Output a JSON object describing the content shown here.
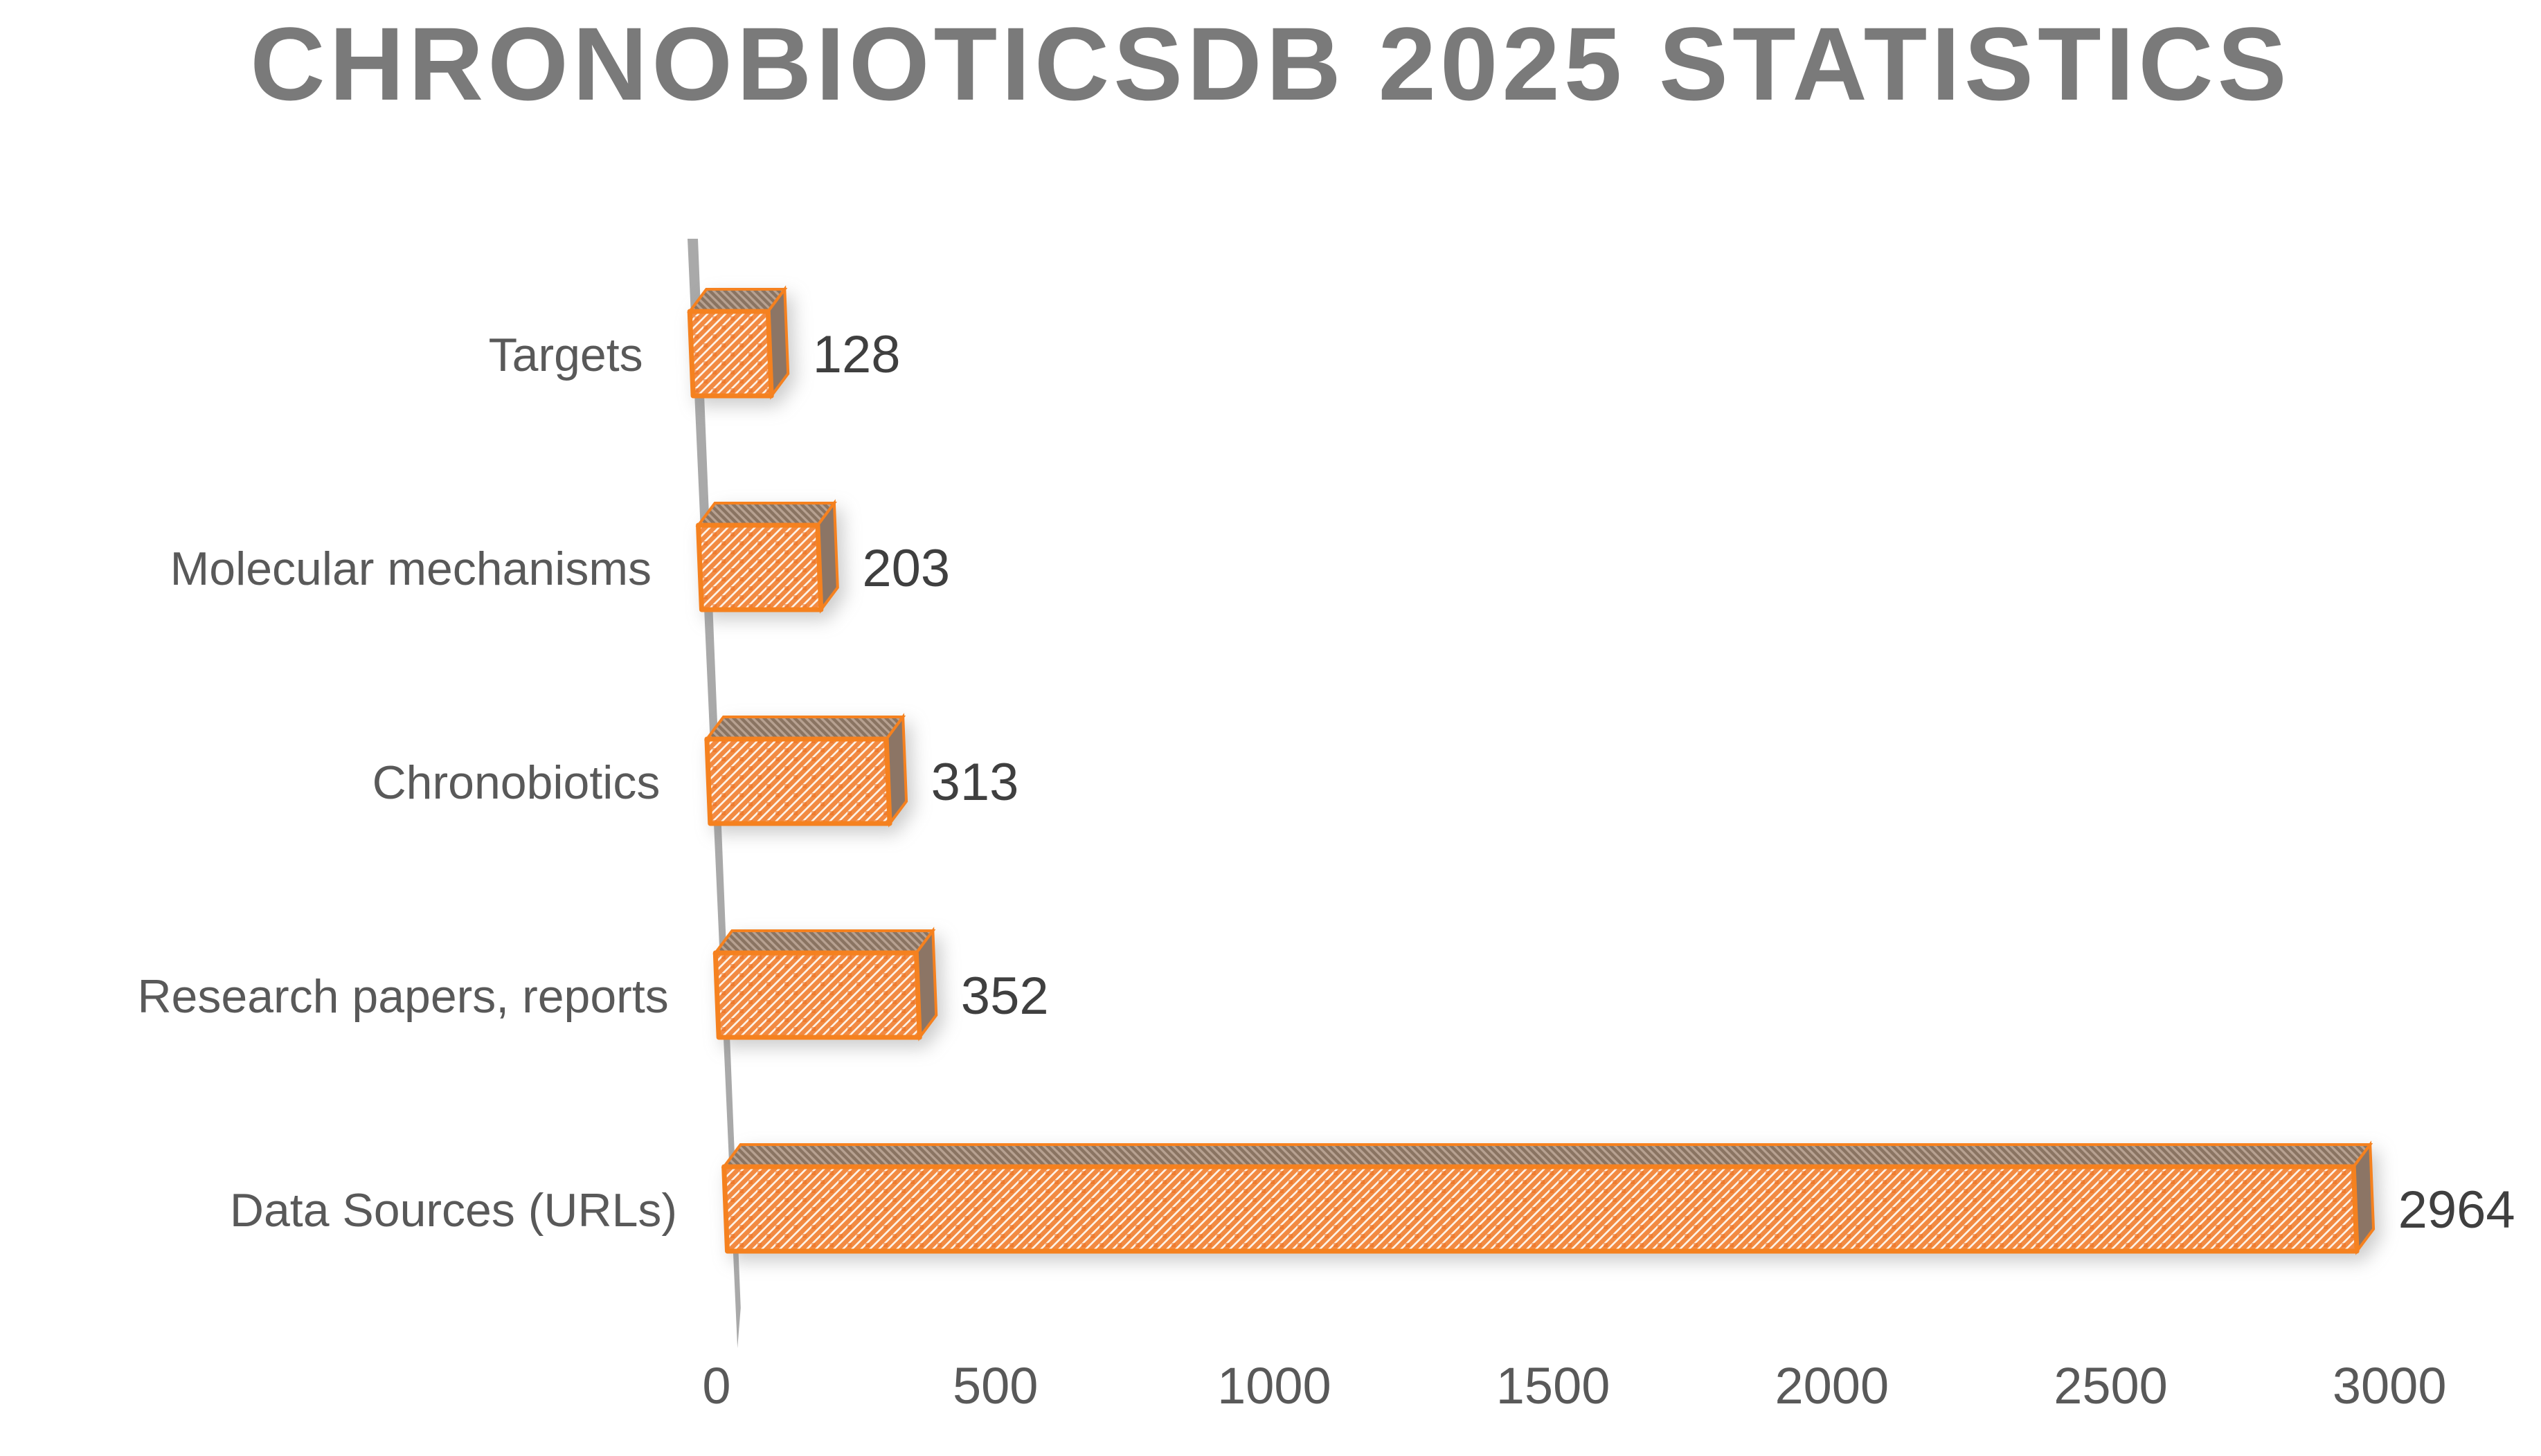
{
  "title": "CHRONOBIOTICSDB 2025 STATISTICS",
  "chart_data": {
    "type": "bar",
    "orientation": "horizontal",
    "style": "3d-hatched",
    "title": "CHRONOBIOTICSDB 2025 STATISTICS",
    "categories": [
      "Targets",
      "Molecular mechanisms",
      "Chronobiotics",
      "Research papers, reports",
      "Data Sources (URLs)"
    ],
    "values": [
      128,
      203,
      313,
      352,
      2964
    ],
    "value_labels": [
      "128",
      "203",
      "313",
      "352",
      "2964"
    ],
    "x_ticks": [
      "0",
      "500",
      "1000",
      "1500",
      "2000",
      "2500",
      "3000"
    ],
    "xlim": [
      0,
      3000
    ],
    "xlabel": "",
    "ylabel": "",
    "grid": "off",
    "legend": "none",
    "data_labels": "outside-end"
  },
  "colors": {
    "accent_orange": "#F5811F",
    "hatch_stripe": "#F28A42",
    "hatch_bg": "#FDF3E8",
    "hatch_dot": "#EA6F1E",
    "top_face": "#B7A191",
    "top_face_line": "#8A7462",
    "side_face": "#8C7565",
    "axis_line": "#A9A9A9",
    "title_text": "#7A7A7A",
    "category_text": "#595959",
    "value_text": "#3F3F3F",
    "tick_text": "#595959"
  }
}
